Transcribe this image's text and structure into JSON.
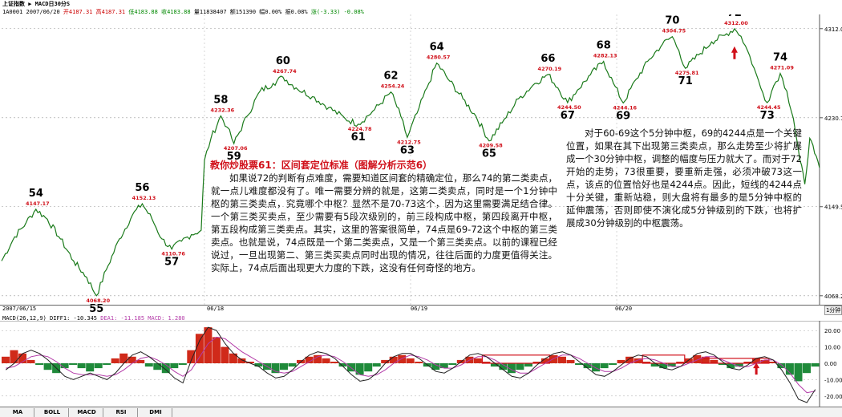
{
  "header": {
    "title": "上证指数 ▶ MACD日30分S",
    "info_code": "1A0001",
    "info_date": "2007/06/20",
    "info_open": "开4187.31",
    "info_high": "高4187.31",
    "info_low": "低4183.88",
    "info_close": "收4183.88",
    "info_volume": "量11838407",
    "info_amount": "额151390",
    "info_pct1": "幅0.00%",
    "info_pct2": "振0.08%",
    "info_change": "涨(-3.33) -0.08%"
  },
  "price_axis": {
    "ticks": [
      "4312.0",
      "4230.7",
      "4149.5",
      "4068.2"
    ]
  },
  "date_axis": {
    "labels": [
      "2007/06/15",
      "06/18",
      "06/19",
      "06/20"
    ],
    "period_button": "1分钟"
  },
  "macd_panel": {
    "header_label": "MACD(26,12,9)",
    "diff_label": "DIFF1: -10.345",
    "dea_label": "DEA1: -11.185",
    "macd_label": "MACD: 1.280",
    "ticks": [
      "20.00",
      "10.00",
      "0.00",
      "-10.00",
      "-20.00"
    ]
  },
  "indicator_tabs": [
    "MA",
    "BOLL",
    "MACD",
    "RSI",
    "DMI"
  ],
  "annotations": {
    "title": "教你炒股票61：区间套定位标准（图解分析示范6）",
    "paragraph_left": "如果说72的判断有点难度，需要知道区间套的精确定位，那么74的第二类卖点，就一点儿难度都没有了。唯一需要分辨的就是，这第二类卖点，同时是一个1分钟中枢的第三类卖点，究竟哪个中枢？显然不是70-73这个，因为这里需要满足结合律。一个第三类买卖点，至少需要有5段次级别的，前三段构成中枢，第四段离开中枢，第五段构成第三类卖点。其实，这里的答案很简单，74点是69-72这个中枢的第三类卖点。也就是说，74点既是一个第二类卖点，又是一个第三类卖点。以前的课程已经说过，一旦出现第二、第三类买卖点同时出现的情况，往往后面的力度更值得关注。实际上，74点后面出现更大力度的下跌，这没有任何奇怪的地方。",
    "paragraph_right": "对于60-69这个5分钟中枢，69的4244点是一个关键位置，如果在其下出现第三类卖点，那么走势至少将扩展成一个30分钟中枢，调整的幅度与压力就大了。而对于72开始的走势，73很重要，要重新走强，必须冲破73这一点，该点的位置恰好也是4244点。因此，短线的4244点十分关键，重新站稳，则大盘将有最多的是5分钟中枢的延伸震荡，否则即使不演化成5分钟级别的下跌，也将扩展成30分钟级别的中枢震荡。"
  },
  "colors": {
    "price_line": "#1a7a1a",
    "label_red": "#d0101a",
    "macd_red": "#d02a1a",
    "macd_green": "#1f8a3a",
    "diff_line": "#222222",
    "dea_line": "#b33aa8"
  },
  "chart_data": [
    {
      "type": "line",
      "title": "",
      "xlabel": "",
      "ylabel": "",
      "ylim": [
        4060,
        4325
      ],
      "x_labels": [
        "2007/06/15",
        "06/18",
        "06/19",
        "06/20"
      ],
      "series": [
        {
          "points": [
            {
              "x": 0,
              "y": 4100
            },
            {
              "x": 8,
              "y": 4122
            },
            {
              "x": 15,
              "y": 4135
            },
            {
              "x": 21,
              "y": 4147.17
            },
            {
              "x": 28,
              "y": 4138
            },
            {
              "x": 36,
              "y": 4120
            },
            {
              "x": 44,
              "y": 4100
            },
            {
              "x": 52,
              "y": 4085
            },
            {
              "x": 58,
              "y": 4068.2
            },
            {
              "x": 64,
              "y": 4092
            },
            {
              "x": 72,
              "y": 4120
            },
            {
              "x": 80,
              "y": 4142
            },
            {
              "x": 86,
              "y": 4152.13
            },
            {
              "x": 92,
              "y": 4138
            },
            {
              "x": 98,
              "y": 4120
            },
            {
              "x": 104,
              "y": 4110.76
            },
            {
              "x": 110,
              "y": 4118
            },
            {
              "x": 116,
              "y": 4124
            },
            {
              "x": 122,
              "y": 4128
            },
            {
              "x": 124,
              "y": 4192
            },
            {
              "x": 128,
              "y": 4212
            },
            {
              "x": 134,
              "y": 4232.36
            },
            {
              "x": 138,
              "y": 4222
            },
            {
              "x": 142,
              "y": 4207.06
            },
            {
              "x": 150,
              "y": 4232
            },
            {
              "x": 158,
              "y": 4255
            },
            {
              "x": 166,
              "y": 4262
            },
            {
              "x": 172,
              "y": 4267.74
            },
            {
              "x": 180,
              "y": 4258
            },
            {
              "x": 190,
              "y": 4250
            },
            {
              "x": 200,
              "y": 4240
            },
            {
              "x": 210,
              "y": 4230
            },
            {
              "x": 218,
              "y": 4224.78
            },
            {
              "x": 228,
              "y": 4238
            },
            {
              "x": 238,
              "y": 4254.24
            },
            {
              "x": 244,
              "y": 4232
            },
            {
              "x": 248,
              "y": 4212.75
            },
            {
              "x": 254,
              "y": 4235
            },
            {
              "x": 260,
              "y": 4258
            },
            {
              "x": 266,
              "y": 4280.57
            },
            {
              "x": 274,
              "y": 4264
            },
            {
              "x": 282,
              "y": 4248
            },
            {
              "x": 290,
              "y": 4232
            },
            {
              "x": 298,
              "y": 4209.58
            },
            {
              "x": 306,
              "y": 4226
            },
            {
              "x": 316,
              "y": 4248
            },
            {
              "x": 326,
              "y": 4262
            },
            {
              "x": 334,
              "y": 4270.19
            },
            {
              "x": 340,
              "y": 4258
            },
            {
              "x": 346,
              "y": 4244.5
            },
            {
              "x": 352,
              "y": 4256
            },
            {
              "x": 360,
              "y": 4270
            },
            {
              "x": 368,
              "y": 4282.13
            },
            {
              "x": 374,
              "y": 4262
            },
            {
              "x": 380,
              "y": 4244.16
            },
            {
              "x": 388,
              "y": 4266
            },
            {
              "x": 396,
              "y": 4284
            },
            {
              "x": 404,
              "y": 4298
            },
            {
              "x": 410,
              "y": 4304.75
            },
            {
              "x": 414,
              "y": 4292
            },
            {
              "x": 418,
              "y": 4275.81
            },
            {
              "x": 426,
              "y": 4288
            },
            {
              "x": 434,
              "y": 4300
            },
            {
              "x": 442,
              "y": 4306
            },
            {
              "x": 448,
              "y": 4312
            },
            {
              "x": 452,
              "y": 4305
            },
            {
              "x": 456,
              "y": 4292
            },
            {
              "x": 460,
              "y": 4276
            },
            {
              "x": 464,
              "y": 4258
            },
            {
              "x": 468,
              "y": 4244.45
            },
            {
              "x": 472,
              "y": 4260
            },
            {
              "x": 476,
              "y": 4271.09
            },
            {
              "x": 480,
              "y": 4255
            },
            {
              "x": 484,
              "y": 4230
            },
            {
              "x": 488,
              "y": 4192
            },
            {
              "x": 491,
              "y": 4170
            },
            {
              "x": 494,
              "y": 4212
            },
            {
              "x": 497,
              "y": 4198
            },
            {
              "x": 500,
              "y": 4185
            }
          ]
        }
      ],
      "point_labels": [
        {
          "name": "54",
          "x": 21,
          "y": 4147.17,
          "value": "4147.17",
          "pos": "above"
        },
        {
          "name": "55",
          "x": 58,
          "y": 4068.2,
          "value": "4068.20",
          "pos": "below"
        },
        {
          "name": "56",
          "x": 86,
          "y": 4152.13,
          "value": "4152.13",
          "pos": "above"
        },
        {
          "name": "57",
          "x": 104,
          "y": 4110.76,
          "value": "4110.76",
          "pos": "below"
        },
        {
          "name": "58",
          "x": 134,
          "y": 4232.36,
          "value": "4232.36",
          "pos": "above"
        },
        {
          "name": "59",
          "x": 142,
          "y": 4207.06,
          "value": "4207.06",
          "pos": "below"
        },
        {
          "name": "60",
          "x": 172,
          "y": 4267.74,
          "value": "4267.74",
          "pos": "above"
        },
        {
          "name": "61",
          "x": 218,
          "y": 4224.78,
          "value": "4224.78",
          "pos": "below"
        },
        {
          "name": "62",
          "x": 238,
          "y": 4254.24,
          "value": "4254.24",
          "pos": "above"
        },
        {
          "name": "63",
          "x": 248,
          "y": 4212.75,
          "value": "4212.75",
          "pos": "below"
        },
        {
          "name": "64",
          "x": 266,
          "y": 4280.57,
          "value": "4280.57",
          "pos": "above"
        },
        {
          "name": "65",
          "x": 298,
          "y": 4209.58,
          "value": "4209.58",
          "pos": "below"
        },
        {
          "name": "66",
          "x": 334,
          "y": 4270.19,
          "value": "4270.19",
          "pos": "above"
        },
        {
          "name": "67",
          "x": 346,
          "y": 4244.5,
          "value": "4244.50",
          "pos": "below"
        },
        {
          "name": "68",
          "x": 368,
          "y": 4282.13,
          "value": "4282.13",
          "pos": "above"
        },
        {
          "name": "69",
          "x": 380,
          "y": 4244.16,
          "value": "4244.16",
          "pos": "below"
        },
        {
          "name": "70",
          "x": 410,
          "y": 4304.75,
          "value": "4304.75",
          "pos": "above"
        },
        {
          "name": "71",
          "x": 418,
          "y": 4275.81,
          "value": "4275.81",
          "pos": "below"
        },
        {
          "name": "72",
          "x": 448,
          "y": 4312,
          "value": "4312.00",
          "pos": "above"
        },
        {
          "name": "73",
          "x": 468,
          "y": 4244.45,
          "value": "4244.45",
          "pos": "below"
        },
        {
          "name": "74",
          "x": 476,
          "y": 4271.09,
          "value": "4271.09",
          "pos": "above"
        }
      ],
      "arrows": [
        {
          "x": 448,
          "y": 4290,
          "direction": "up"
        }
      ],
      "y_ticks": [
        4312.0,
        4230.7,
        4149.5,
        4068.2
      ]
    },
    {
      "type": "bar",
      "title": "",
      "xlabel": "",
      "ylabel": "",
      "ylim": [
        -25,
        25
      ],
      "y_ticks": [
        20,
        10,
        0,
        -10,
        -20
      ],
      "macd_values": [
        4,
        8,
        6,
        2,
        -1,
        -4,
        -6,
        -3,
        -1,
        -3,
        -5,
        -3,
        -1,
        3,
        6,
        4,
        2,
        -2,
        -4,
        -6,
        -3,
        -1,
        8,
        18,
        22,
        16,
        10,
        6,
        3,
        1,
        -2,
        -4,
        -6,
        -4,
        -2,
        2,
        4,
        5,
        3,
        1,
        -2,
        -5,
        -7,
        -5,
        -2,
        2,
        4,
        5,
        3,
        1,
        -2,
        -4,
        -3,
        -1,
        2,
        4,
        3,
        1,
        -2,
        -4,
        -6,
        -4,
        -2,
        1,
        3,
        5,
        4,
        2,
        -1,
        -3,
        -5,
        -3,
        -1,
        2,
        4,
        3,
        1,
        -2,
        -3,
        -2,
        1,
        3,
        5,
        4,
        2,
        -1,
        -3,
        -2,
        1,
        3,
        2,
        1,
        -3,
        -7,
        -11,
        -6,
        -2
      ],
      "diff_values": [
        -4,
        0,
        6,
        8,
        6,
        2,
        -3,
        -8,
        -10,
        -8,
        -6,
        -8,
        -10,
        -6,
        0,
        5,
        7,
        4,
        0,
        -4,
        -9,
        -12,
        2,
        14,
        22,
        20,
        12,
        6,
        2,
        0,
        -2,
        -6,
        -9,
        -8,
        -4,
        1,
        5,
        7,
        6,
        3,
        -2,
        -7,
        -11,
        -10,
        -6,
        0,
        4,
        6,
        6,
        3,
        -1,
        -5,
        -6,
        -3,
        1,
        5,
        6,
        4,
        0,
        -4,
        -8,
        -9,
        -6,
        -1,
        3,
        6,
        7,
        5,
        1,
        -3,
        -7,
        -8,
        -5,
        -1,
        3,
        5,
        4,
        0,
        -3,
        -4,
        -2,
        2,
        6,
        7,
        5,
        1,
        -3,
        -4,
        -1,
        3,
        4,
        2,
        -4,
        -12,
        -22,
        -24,
        -16
      ],
      "dea_values": [
        -3,
        -2,
        1,
        4,
        5,
        4,
        1,
        -3,
        -6,
        -7,
        -7,
        -7,
        -8,
        -7,
        -4,
        0,
        3,
        4,
        2,
        -1,
        -5,
        -8,
        -4,
        4,
        12,
        16,
        15,
        11,
        7,
        4,
        1,
        -2,
        -5,
        -6,
        -5,
        -2,
        1,
        4,
        5,
        4,
        1,
        -3,
        -7,
        -8,
        -7,
        -4,
        0,
        3,
        5,
        4,
        2,
        -1,
        -3,
        -3,
        -1,
        2,
        4,
        4,
        2,
        -1,
        -4,
        -6,
        -6,
        -3,
        0,
        3,
        5,
        5,
        3,
        0,
        -3,
        -5,
        -5,
        -3,
        0,
        2,
        3,
        2,
        0,
        -2,
        -2,
        0,
        2,
        4,
        4,
        2,
        0,
        -2,
        -2,
        0,
        2,
        2,
        -1,
        -6,
        -13,
        -18,
        -17
      ],
      "boxes": [
        {
          "from": 57,
          "to": 64,
          "low": 0,
          "high": 5
        },
        {
          "from": 76,
          "to": 80,
          "low": 0,
          "high": 5
        },
        {
          "from": 83,
          "to": 90,
          "low": 0,
          "high": 3
        }
      ],
      "arrows": [
        {
          "index": 89,
          "direction": "up"
        }
      ]
    }
  ]
}
